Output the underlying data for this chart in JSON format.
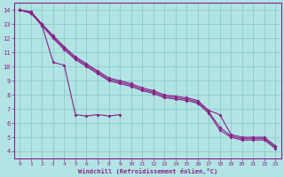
{
  "xlabel": "Windchill (Refroidissement éolien,°C)",
  "ylabel": "",
  "bg_color": "#b2e4e4",
  "grid_color": "#8ccaca",
  "line_color": "#882288",
  "xlim": [
    -0.5,
    23.5
  ],
  "ylim": [
    3.5,
    14.5
  ],
  "xticks": [
    0,
    1,
    2,
    3,
    4,
    5,
    6,
    7,
    8,
    9,
    10,
    11,
    12,
    13,
    14,
    15,
    16,
    17,
    18,
    19,
    20,
    21,
    22,
    23
  ],
  "yticks": [
    4,
    5,
    6,
    7,
    8,
    9,
    10,
    11,
    12,
    13,
    14
  ],
  "lines": [
    {
      "x": [
        0,
        1,
        2,
        3,
        4,
        5,
        6,
        7,
        8,
        9
      ],
      "y": [
        14.0,
        13.8,
        12.9,
        10.3,
        10.1,
        6.6,
        6.5,
        6.6,
        6.5,
        6.6
      ]
    },
    {
      "x": [
        0,
        1,
        2,
        3,
        4,
        5,
        6,
        7,
        8,
        9,
        10,
        11,
        12,
        13,
        14,
        15,
        16,
        17,
        18,
        19,
        20,
        21,
        22,
        23
      ],
      "y": [
        14.0,
        13.8,
        12.9,
        12.0,
        11.2,
        10.5,
        10.0,
        9.5,
        9.0,
        8.8,
        8.6,
        8.3,
        8.1,
        7.8,
        7.7,
        7.6,
        7.4,
        6.7,
        5.5,
        5.0,
        4.8,
        4.8,
        4.8,
        4.2
      ]
    },
    {
      "x": [
        0,
        1,
        2,
        3,
        4,
        5,
        6,
        7,
        8,
        9,
        10,
        11,
        12,
        13,
        14,
        15,
        16,
        17,
        18,
        19,
        20,
        21,
        22,
        23
      ],
      "y": [
        14.0,
        13.9,
        13.0,
        12.1,
        11.3,
        10.6,
        10.1,
        9.6,
        9.1,
        8.9,
        8.7,
        8.4,
        8.2,
        7.9,
        7.8,
        7.7,
        7.5,
        6.8,
        5.7,
        5.1,
        4.9,
        4.9,
        4.9,
        4.3
      ]
    },
    {
      "x": [
        0,
        1,
        2,
        3,
        4,
        5,
        6,
        7,
        8,
        9,
        10,
        11,
        12,
        13,
        14,
        15,
        16,
        17,
        18,
        19,
        20,
        21,
        22,
        23
      ],
      "y": [
        14.0,
        13.8,
        13.0,
        12.2,
        11.4,
        10.7,
        10.2,
        9.7,
        9.2,
        9.0,
        8.8,
        8.5,
        8.3,
        8.0,
        7.9,
        7.8,
        7.6,
        6.9,
        6.6,
        5.2,
        5.0,
        5.0,
        5.0,
        4.4
      ]
    }
  ]
}
